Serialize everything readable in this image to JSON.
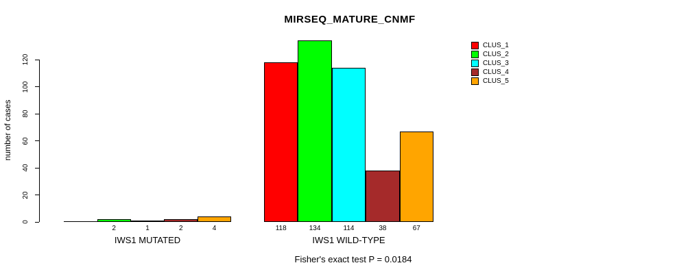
{
  "title": "MIRSEQ_MATURE_CNMF",
  "footer_annotation": "Fisher's exact test P = 0.0184",
  "y_axis": {
    "label": "number of cases",
    "ticks": [
      0,
      20,
      40,
      60,
      80,
      100,
      120
    ]
  },
  "legend": {
    "position": "top-right",
    "items": [
      {
        "label": "CLUS_1",
        "color": "#FF0000"
      },
      {
        "label": "CLUS_2",
        "color": "#00FF00"
      },
      {
        "label": "CLUS_3",
        "color": "#00FFFF"
      },
      {
        "label": "CLUS_4",
        "color": "#A52A2A"
      },
      {
        "label": "CLUS_5",
        "color": "#FFA500"
      }
    ]
  },
  "chart_data": {
    "type": "bar",
    "title": "MIRSEQ_MATURE_CNMF",
    "ylabel": "number of cases",
    "ylim": [
      0,
      140
    ],
    "yticks": [
      0,
      20,
      40,
      60,
      80,
      100,
      120
    ],
    "grid": false,
    "legend_position": "top-right",
    "series_labels": [
      "CLUS_1",
      "CLUS_2",
      "CLUS_3",
      "CLUS_4",
      "CLUS_5"
    ],
    "series_colors": [
      "#FF0000",
      "#00FF00",
      "#00FFFF",
      "#A52A2A",
      "#FFA500"
    ],
    "groups": [
      {
        "label": "IWS1 MUTATED",
        "values": [
          0,
          2,
          1,
          2,
          4
        ]
      },
      {
        "label": "IWS1 WILD-TYPE",
        "values": [
          118,
          134,
          114,
          38,
          67
        ]
      }
    ],
    "bar_value_labels_shown_for_nonzero": true,
    "annotation": "Fisher's exact test P = 0.0184"
  }
}
